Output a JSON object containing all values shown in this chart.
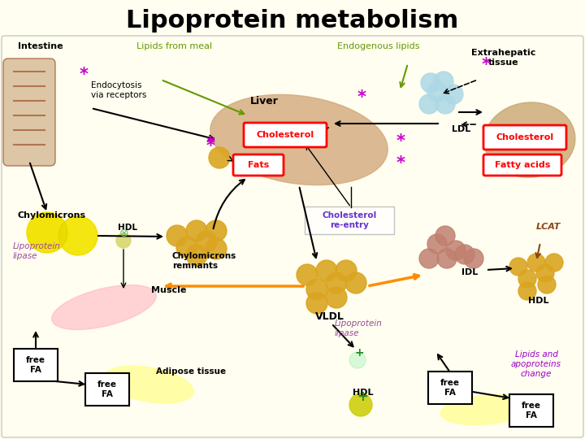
{
  "title": "Lipoprotein metabolism",
  "title_fontsize": 22,
  "title_fontweight": "bold",
  "bg_color": "#FFFEF0",
  "labels": {
    "intestine": "Intestine",
    "lipids_from_meal": "Lipids from meal",
    "endogenous_lipids": "Endogenous lipids",
    "extrahepatic": "Extrahepatic\ntissue",
    "endocytosis": "Endocytosis\nvia receptors",
    "liver": "Liver",
    "cholesterol": "Cholesterol",
    "fats": "Fats",
    "fatty_acids": "Fatty acids",
    "chylomicrons": "Chylomicrons",
    "hdl": "HDL",
    "chylo_remnants": "Chylomicrons\nremnants",
    "muscle": "Muscle",
    "lipo_lipase1": "Lipoprotein\nlipase",
    "lipo_lipase2": "Lipoprotein\nlipase",
    "adipose": "Adipose tissue",
    "vldl": "VLDL",
    "cholesterol_reentry": "Cholesterol\nre-entry",
    "ldl": "LDL",
    "idl": "IDL",
    "hdl2": "HDL",
    "lcat": "LCAT",
    "lipids_apoproteins": "Lipids and\napoproteins\nchange"
  },
  "colors": {
    "title": "#000000",
    "lipids_from_meal": "#669900",
    "endogenous_lipids": "#669900",
    "intestine_fill": "#D2B48C",
    "liver_fill": "#D2A679",
    "extrahepatic_fill": "#C8A46E",
    "chylomicron_fill": "#FFFF00",
    "remnant_fill": "#DAA520",
    "vldl_fill": "#DAA520",
    "idl_fill": "#C8A090",
    "hdl_fill": "#DAA520",
    "hdl_right_fill": "#DAA520",
    "ldl_fill": "#ADD8E6",
    "muscle_fill": "#FFB6C1",
    "adipose_fill": "#FFFF99",
    "adipose2_fill": "#FFFF99",
    "cholesterol_box": "#FF0000",
    "fats_box": "#FF0000",
    "fatty_acids_box": "#FF0000",
    "arrow_color": "#000000",
    "orange_arrow": "#FF8C00",
    "star_color": "#CC00CC",
    "lcat_color": "#8B4513",
    "lipo_lipase_color": "#9B4A9B",
    "reentry_color": "#6633CC",
    "lipids_apoproteins_color": "#9900CC"
  }
}
